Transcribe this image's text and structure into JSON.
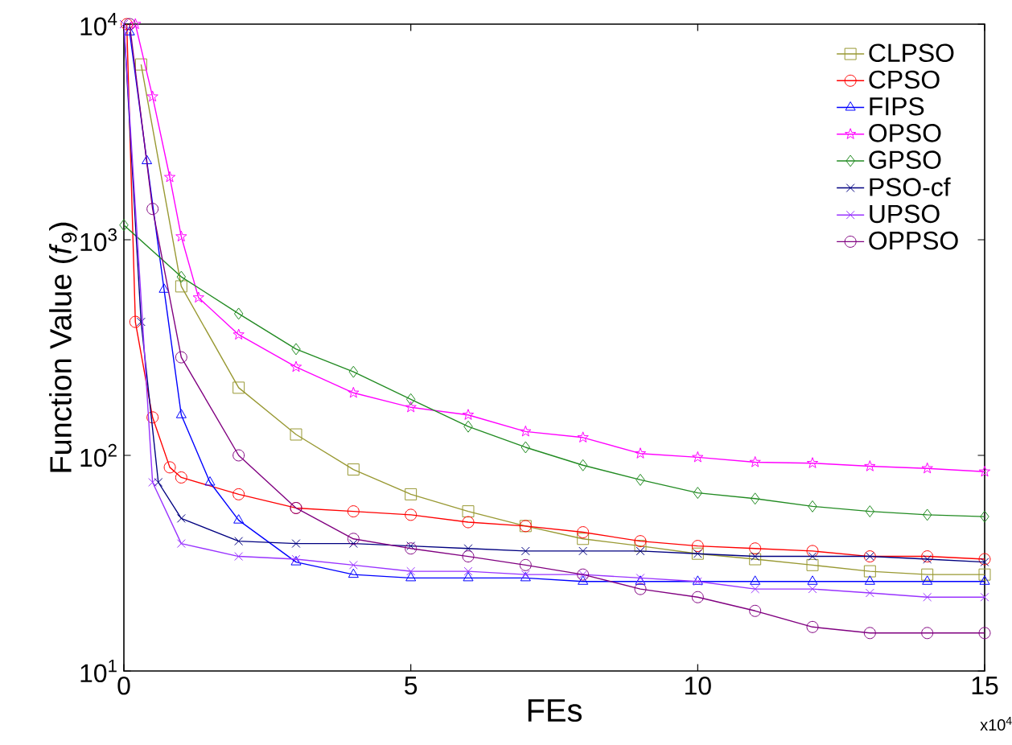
{
  "chart_data": {
    "type": "line",
    "xlabel": "FEs",
    "ylabel": "Function Value (*f*$_{9}$)",
    "annotations": [
      "x10$^{4}$"
    ],
    "xlim": [
      0,
      15
    ],
    "xticks": [
      0,
      5,
      10,
      15
    ],
    "ylim": [
      10,
      10000
    ],
    "log": "y",
    "yticks": [
      {
        "value": 10,
        "label": "10$^{1}$"
      },
      {
        "value": 100,
        "label": "10$^{2}$"
      },
      {
        "value": 1000,
        "label": "10$^{3}$"
      },
      {
        "value": 10000,
        "label": "10$^{4}$"
      }
    ],
    "grid": false,
    "legend": "top right",
    "line_style": "solid",
    "series": [
      {
        "name": "CLPSO",
        "color": "#999933",
        "marker": "square",
        "x": [
          0.3,
          1,
          2,
          3,
          4,
          5,
          6,
          7,
          8,
          9,
          10,
          11,
          12,
          13,
          14,
          15
        ],
        "values": [
          6500,
          608,
          206,
          125,
          86,
          66,
          55,
          47,
          41,
          38,
          35,
          33,
          31,
          29,
          28,
          28
        ]
      },
      {
        "name": "CPSO",
        "color": "#ff0000",
        "marker": "circle",
        "x": [
          0.05,
          0.2,
          0.5,
          0.8,
          1,
          2,
          3,
          4,
          5,
          6,
          7,
          8,
          9,
          10,
          11,
          12,
          13,
          14,
          15
        ],
        "values": [
          10000,
          416,
          150,
          88,
          79,
          66,
          57,
          55,
          53,
          49,
          47,
          44,
          40,
          38,
          37,
          36,
          34,
          34,
          33
        ]
      },
      {
        "name": "FIPS",
        "color": "#0000ff",
        "marker": "triangle",
        "x": [
          0.1,
          0.4,
          0.7,
          1,
          1.5,
          2,
          3,
          4,
          5,
          6,
          7,
          8,
          9,
          10,
          11,
          12,
          13,
          14,
          15
        ],
        "values": [
          9180,
          2320,
          588,
          154,
          75,
          50,
          32,
          28,
          27,
          27,
          27,
          26,
          26,
          26,
          26,
          26,
          26,
          26,
          26
        ]
      },
      {
        "name": "OPSO",
        "color": "#ff00ff",
        "marker": "star",
        "x": [
          0.2,
          0.5,
          0.8,
          1,
          1.3,
          2,
          3,
          4,
          5,
          6,
          7,
          8,
          9,
          10,
          11,
          12,
          13,
          14,
          15
        ],
        "values": [
          10000,
          4610,
          1950,
          1035,
          539,
          363,
          257,
          195,
          167,
          154,
          129,
          121,
          102,
          98,
          93,
          92,
          89,
          87,
          84
        ]
      },
      {
        "name": "GPSO",
        "color": "#228b22",
        "marker": "diamond",
        "x": [
          0,
          1,
          2,
          3,
          4,
          5,
          6,
          7,
          8,
          9,
          10,
          11,
          12,
          13,
          14,
          15
        ],
        "values": [
          1170,
          673,
          454,
          311,
          244,
          182,
          136,
          109,
          90,
          77,
          67,
          63,
          58,
          55,
          53,
          52
        ]
      },
      {
        "name": "PSO-cf",
        "color": "#000080",
        "marker": "cross",
        "x": [
          0,
          0.3,
          0.6,
          1,
          2,
          3,
          4,
          5,
          6,
          7,
          8,
          9,
          10,
          11,
          12,
          13,
          14,
          15
        ],
        "values": [
          10000,
          416,
          75,
          51,
          40,
          39,
          39,
          38,
          37,
          36,
          36,
          36,
          35,
          34,
          34,
          34,
          33,
          32
        ]
      },
      {
        "name": "UPSO",
        "color": "#9933ff",
        "marker": "cross",
        "x": [
          0,
          0.5,
          1,
          2,
          3,
          4,
          5,
          6,
          7,
          8,
          9,
          10,
          11,
          12,
          13,
          14,
          15
        ],
        "values": [
          10000,
          75,
          39,
          34,
          33,
          31,
          29,
          29,
          28,
          28,
          27,
          26,
          24,
          24,
          23,
          22,
          22
        ]
      },
      {
        "name": "OPPSO",
        "color": "#800080",
        "marker": "circle",
        "x": [
          0.1,
          0.5,
          1,
          2,
          3,
          4,
          5,
          6,
          7,
          8,
          9,
          10,
          11,
          12,
          13,
          14,
          15
        ],
        "values": [
          10000,
          1390,
          285,
          100,
          57,
          41,
          37,
          34,
          31,
          28,
          24,
          22,
          19,
          16,
          15,
          15,
          15
        ]
      }
    ]
  }
}
